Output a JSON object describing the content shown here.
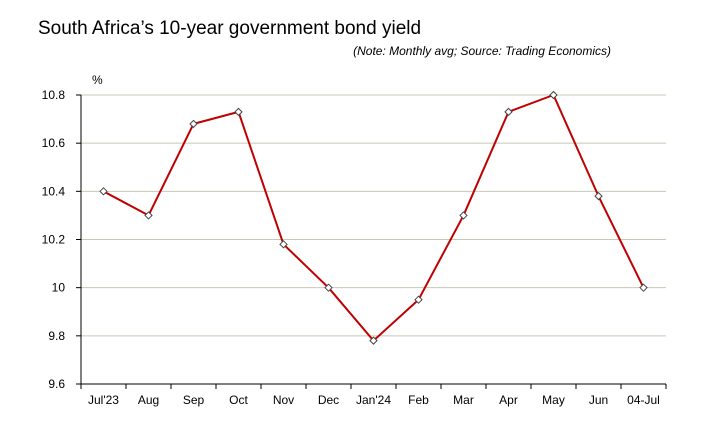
{
  "chart_data": {
    "type": "line",
    "title": "South Africa’s 10-year government bond yield",
    "subtitle": "(Note: Monthly avg; Source: Trading Economics)",
    "ylabel": "%",
    "xlabel": "",
    "categories": [
      "Jul'23",
      "Aug",
      "Sep",
      "Oct",
      "Nov",
      "Dec",
      "Jan'24",
      "Feb",
      "Mar",
      "Apr",
      "May",
      "Jun",
      "04-Jul"
    ],
    "series": [
      {
        "values": [
          10.4,
          10.3,
          10.68,
          10.73,
          10.18,
          10.0,
          9.78,
          9.95,
          10.3,
          10.73,
          10.8,
          10.38,
          10.0
        ],
        "color": "#c00000",
        "marker": "diamond"
      }
    ],
    "ylim": [
      9.6,
      10.8
    ],
    "yticks": [
      9.6,
      9.8,
      10,
      10.2,
      10.4,
      10.6,
      10.8
    ],
    "grid": true,
    "grid_color": "#c8c8b4",
    "legend": false
  }
}
